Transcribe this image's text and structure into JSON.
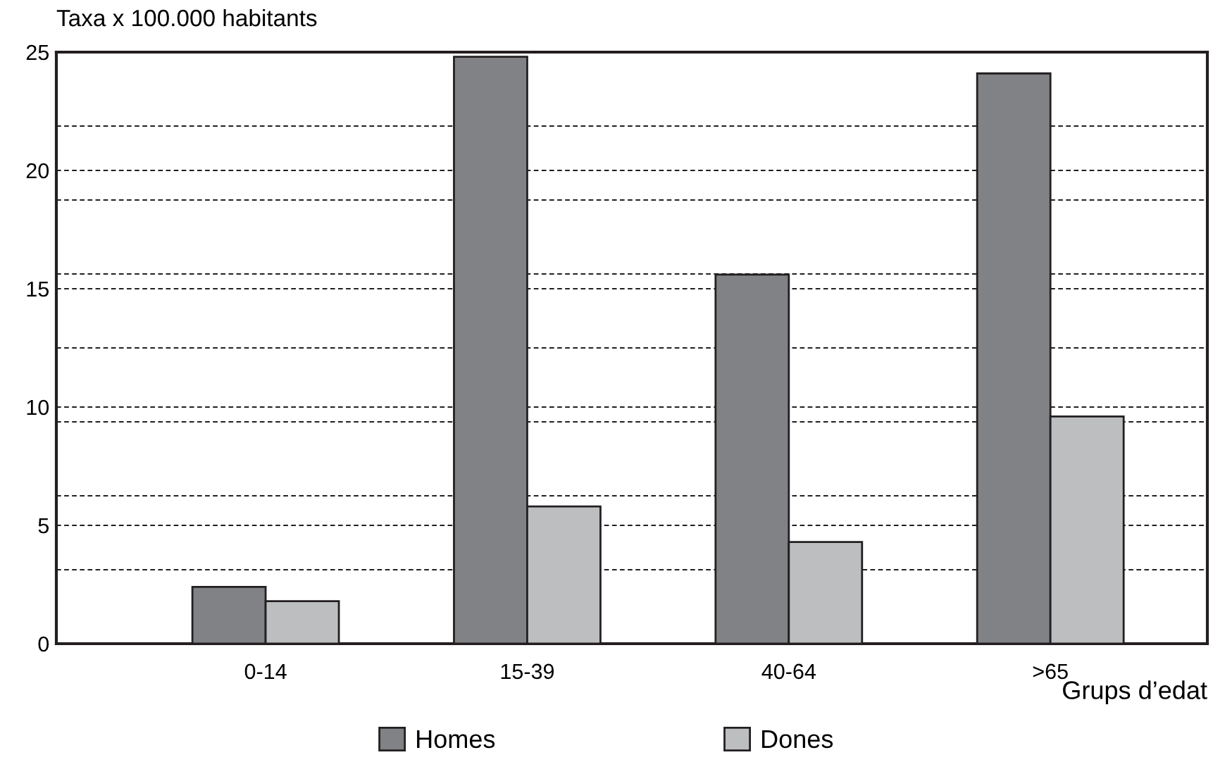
{
  "chart_data": {
    "type": "bar",
    "ylabel": "Taxa x 100.000 habitants",
    "xlabel": "Grups d’edat",
    "categories": [
      "0-14",
      "15-39",
      "40-64",
      ">65"
    ],
    "series": [
      {
        "name": "Homes",
        "color": "#808285",
        "values": [
          2.4,
          24.8,
          15.6,
          24.1
        ]
      },
      {
        "name": "Dones",
        "color": "#bcbec0",
        "values": [
          1.8,
          5.8,
          4.3,
          9.6
        ]
      }
    ],
    "ylim": [
      0,
      25
    ],
    "yticks": [
      0,
      {
        "value": 3.125,
        "label": null
      },
      5,
      {
        "value": 6.25,
        "label": null
      },
      {
        "value": 9.375,
        "label": null
      },
      10,
      {
        "value": 12.5,
        "label": null
      },
      15,
      {
        "value": 15.625,
        "label": null
      },
      {
        "value": 18.75,
        "label": null
      },
      20,
      {
        "value": 21.875,
        "label": null
      },
      25
    ],
    "grid": "y",
    "legend": "bottom"
  }
}
